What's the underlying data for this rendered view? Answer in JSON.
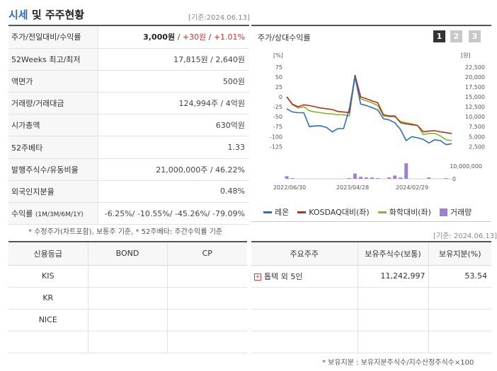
{
  "header": {
    "title_part1": "시세",
    "title_part2": " 및 주주현황",
    "as_of": "[기준:2024.06.13]"
  },
  "info_rows": [
    {
      "label": "주가/전일대비/수익률",
      "price": "3,000원",
      "sep1": " / ",
      "change": "+30원",
      "sep2": " / ",
      "pct": "+1.01%"
    },
    {
      "label": "52Weeks 최고/최저",
      "value": "17,815원 / 2,640원"
    },
    {
      "label": "액면가",
      "value": "500원"
    },
    {
      "label": "거래량/거래대금",
      "value": "124,994주 / 4억원"
    },
    {
      "label": "시가총액",
      "value": "630억원"
    },
    {
      "label": "52주베타",
      "value": "1.33"
    },
    {
      "label": "발행주식수/유동비율",
      "value": "21,000,000주 / 46.22%"
    },
    {
      "label": "외국인지분율",
      "value": "0.48%"
    },
    {
      "label": "수익률",
      "label_sub": "(1M/3M/6M/1Y)",
      "value": "-6.25%/ -10.55%/ -45.26%/ -79.09%"
    }
  ],
  "note1": "* 수정주가(차트포함), 보통주 기준, * 52주베타: 주간수익률 기준",
  "chart_panel": {
    "title": "주가/상대수익률",
    "period_buttons": [
      "1",
      "2",
      "3"
    ],
    "active_button": 0,
    "colors": {
      "rayon": "#2d6ec4",
      "kosdaq": "#b8301c",
      "chem": "#8ab62a",
      "volume": "#a27fd6",
      "btn_active": "#333333",
      "btn_inactive": "#c8c8c8"
    }
  },
  "chart_data": {
    "type": "line",
    "left_axis_unit": "[%]",
    "right_axis_unit": "[원]",
    "left_ticks": [
      "75",
      "50",
      "25",
      "0",
      "-25",
      "-50",
      "-75",
      "-100",
      "-125"
    ],
    "right_ticks": [
      "22,500",
      "20,000",
      "17,500",
      "15,000",
      "12,500",
      "10,000",
      "7,500",
      "5,000",
      "2,500"
    ],
    "volume_ticks": [
      "10,000,000",
      "0"
    ],
    "x_labels": [
      "2022/06/30",
      "2023/04/28",
      "2024/02/29"
    ],
    "ylim": [
      -135,
      80
    ],
    "series": [
      {
        "name": "레온",
        "values": [
          -30,
          -38,
          -40,
          -40,
          -75,
          -73,
          -73,
          -77,
          -88,
          -80,
          -80,
          -30,
          50,
          -18,
          -22,
          -27,
          -33,
          -55,
          -58,
          -65,
          -82,
          -110,
          -100,
          -103,
          -107,
          -116,
          -108,
          -110,
          -120,
          -118
        ]
      },
      {
        "name": "KOSDAQ대비(좌)",
        "values": [
          0,
          -18,
          -25,
          -20,
          -22,
          -25,
          -28,
          -30,
          -32,
          -37,
          -38,
          -40,
          55,
          0,
          -5,
          -10,
          -15,
          -45,
          -48,
          -48,
          -65,
          -68,
          -70,
          -72,
          -88,
          -86,
          -85,
          -88,
          -90,
          -92
        ]
      },
      {
        "name": "화학대비(좌)",
        "values": [
          0,
          -20,
          -28,
          -25,
          -35,
          -38,
          -40,
          -42,
          -43,
          -45,
          -45,
          -48,
          48,
          -5,
          -10,
          -15,
          -22,
          -48,
          -50,
          -50,
          -62,
          -65,
          -68,
          -72,
          -95,
          -92,
          -92,
          -98,
          -108,
          -110
        ]
      }
    ],
    "volume_name": "거래량",
    "volume": [
      4,
      1,
      0,
      0,
      0,
      0,
      0,
      0,
      0,
      0,
      0,
      1,
      8,
      3,
      2,
      2,
      1,
      0,
      2,
      5,
      2,
      24,
      0,
      0,
      0,
      2,
      0,
      0,
      1,
      0
    ]
  },
  "credit": {
    "headers": [
      "신용등급",
      "BOND",
      "CP"
    ],
    "rows": [
      [
        "KIS",
        "",
        ""
      ],
      [
        "KR",
        "",
        ""
      ],
      [
        "NICE",
        "",
        ""
      ],
      [
        "",
        "",
        ""
      ]
    ]
  },
  "holders": {
    "as_of": "[기준: 2024.06.13]",
    "headers": [
      "주요주주",
      "보유주식수(보통)",
      "보유지분(%)"
    ],
    "rows": [
      [
        "톱텍 외 5인",
        "11,242,997",
        "53.54"
      ],
      [
        "",
        "",
        ""
      ],
      [
        "",
        "",
        ""
      ],
      [
        "",
        "",
        ""
      ]
    ],
    "footnote": "* 보유지분 : 보유지분주식수/지수산정주식수×100"
  }
}
